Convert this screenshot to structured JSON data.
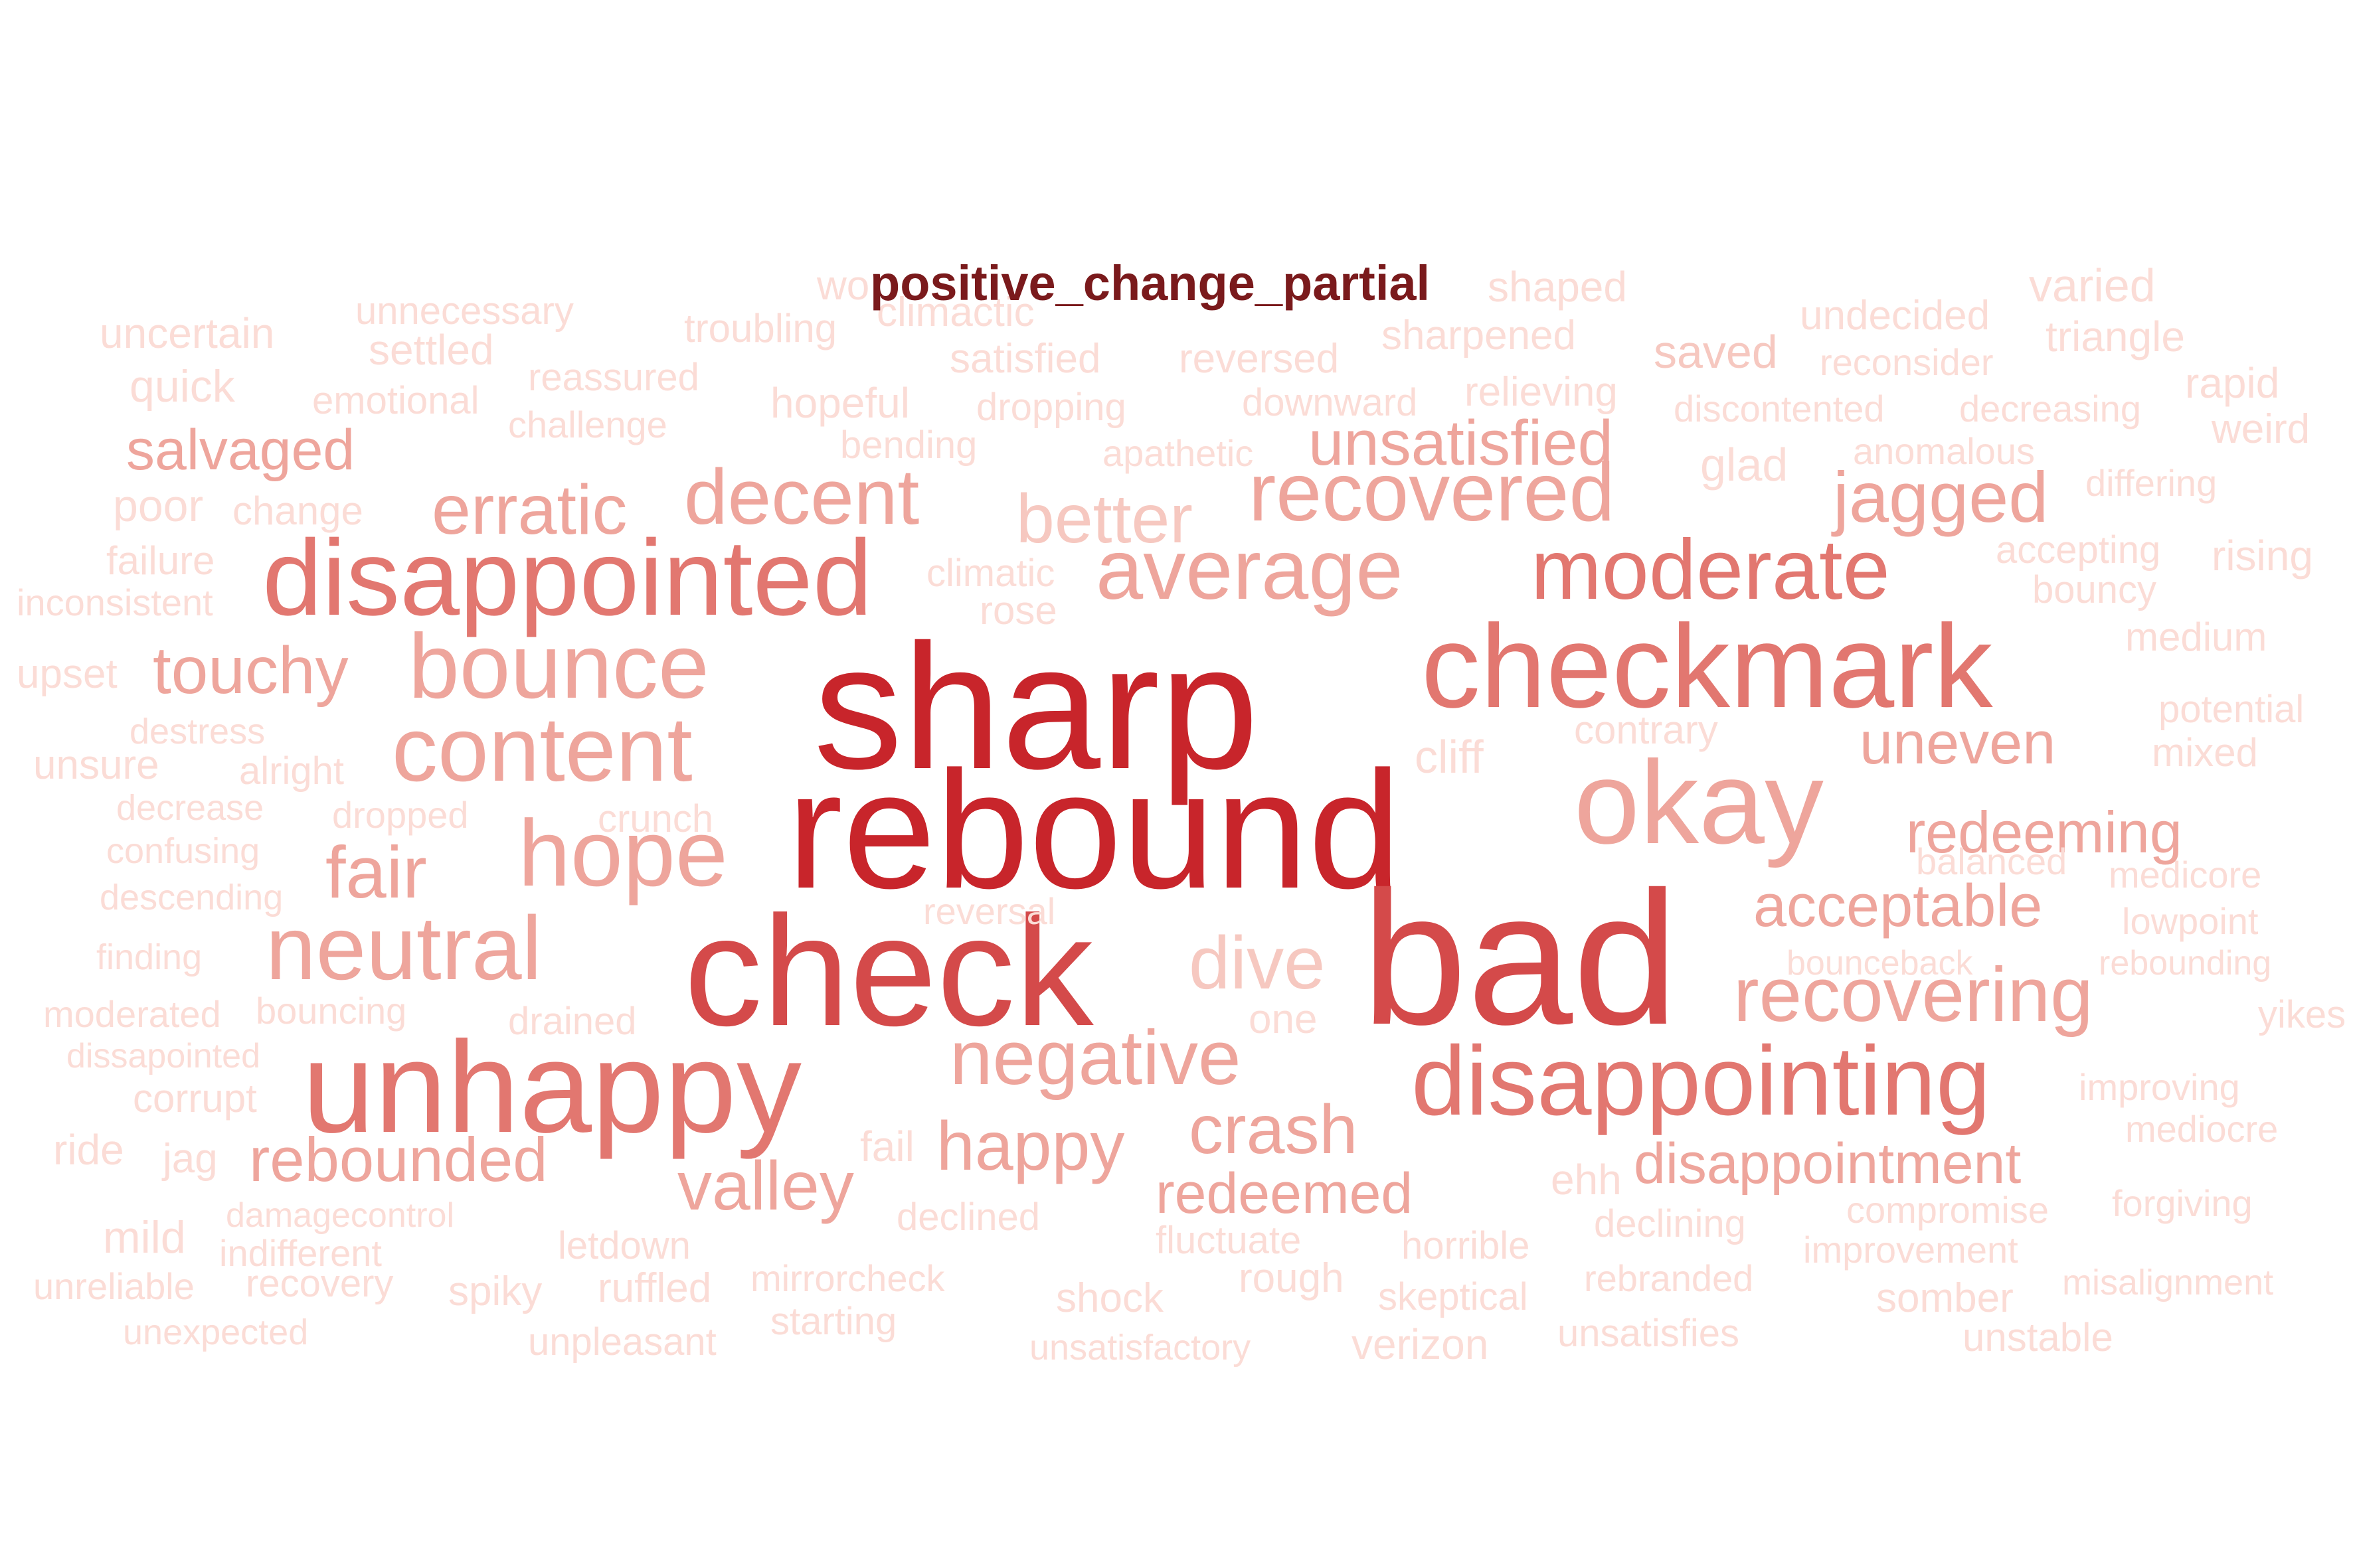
{
  "title": "positive_change_partial",
  "palette": {
    "t1": "#c8252b",
    "t2": "#d44a4a",
    "t3": "#e27770",
    "t4": "#eea59c",
    "t5": "#f6c8c0",
    "t6": "#fbdcd6"
  },
  "words": [
    {
      "text": "sharp",
      "tier": "t1"
    },
    {
      "text": "rebound",
      "tier": "t1"
    },
    {
      "text": "bad",
      "tier": "t2"
    },
    {
      "text": "check",
      "tier": "t2"
    },
    {
      "text": "checkmark",
      "tier": "t3"
    },
    {
      "text": "unhappy",
      "tier": "t3"
    },
    {
      "text": "disappointed",
      "tier": "t3"
    },
    {
      "text": "okay",
      "tier": "t4"
    },
    {
      "text": "disappointing",
      "tier": "t3"
    },
    {
      "text": "moderate",
      "tier": "t3"
    },
    {
      "text": "average",
      "tier": "t4"
    },
    {
      "text": "recovered",
      "tier": "t4"
    },
    {
      "text": "bounce",
      "tier": "t4"
    },
    {
      "text": "content",
      "tier": "t4"
    },
    {
      "text": "hope",
      "tier": "t4"
    },
    {
      "text": "neutral",
      "tier": "t4"
    },
    {
      "text": "negative",
      "tier": "t4"
    },
    {
      "text": "recovering",
      "tier": "t4"
    },
    {
      "text": "decent",
      "tier": "t4"
    },
    {
      "text": "erratic",
      "tier": "t4"
    },
    {
      "text": "jagged",
      "tier": "t4"
    },
    {
      "text": "better",
      "tier": "t5"
    },
    {
      "text": "unsatisfied",
      "tier": "t4"
    },
    {
      "text": "touchy",
      "tier": "t4"
    },
    {
      "text": "fair",
      "tier": "t4"
    },
    {
      "text": "dive",
      "tier": "t5"
    },
    {
      "text": "crash",
      "tier": "t4"
    },
    {
      "text": "happy",
      "tier": "t4"
    },
    {
      "text": "valley",
      "tier": "t4"
    },
    {
      "text": "rebounded",
      "tier": "t4"
    },
    {
      "text": "redeemed",
      "tier": "t4"
    },
    {
      "text": "disappointment",
      "tier": "t4"
    },
    {
      "text": "uneven",
      "tier": "t4"
    },
    {
      "text": "redeeming",
      "tier": "t4"
    },
    {
      "text": "acceptable",
      "tier": "t4"
    },
    {
      "text": "salvaged",
      "tier": "t4"
    },
    {
      "text": "uncertain",
      "tier": "t6"
    },
    {
      "text": "unnecessary",
      "tier": "t6"
    },
    {
      "text": "troubling",
      "tier": "t6"
    },
    {
      "text": "wo",
      "tier": "t6"
    },
    {
      "text": "climactic",
      "tier": "t6"
    },
    {
      "text": "shaped",
      "tier": "t6"
    },
    {
      "text": "varied",
      "tier": "t6"
    },
    {
      "text": "undecided",
      "tier": "t6"
    },
    {
      "text": "settled",
      "tier": "t6"
    },
    {
      "text": "satisfied",
      "tier": "t6"
    },
    {
      "text": "reversed",
      "tier": "t6"
    },
    {
      "text": "sharpened",
      "tier": "t6"
    },
    {
      "text": "saved",
      "tier": "t5"
    },
    {
      "text": "reconsider",
      "tier": "t6"
    },
    {
      "text": "triangle",
      "tier": "t6"
    },
    {
      "text": "quick",
      "tier": "t6"
    },
    {
      "text": "reassured",
      "tier": "t6"
    },
    {
      "text": "emotional",
      "tier": "t6"
    },
    {
      "text": "hopeful",
      "tier": "t6"
    },
    {
      "text": "dropping",
      "tier": "t6"
    },
    {
      "text": "downward",
      "tier": "t6"
    },
    {
      "text": "relieving",
      "tier": "t6"
    },
    {
      "text": "discontented",
      "tier": "t6"
    },
    {
      "text": "decreasing",
      "tier": "t6"
    },
    {
      "text": "rapid",
      "tier": "t6"
    },
    {
      "text": "challenge",
      "tier": "t6"
    },
    {
      "text": "bending",
      "tier": "t6"
    },
    {
      "text": "apathetic",
      "tier": "t6"
    },
    {
      "text": "glad",
      "tier": "t6"
    },
    {
      "text": "anomalous",
      "tier": "t6"
    },
    {
      "text": "weird",
      "tier": "t6"
    },
    {
      "text": "poor",
      "tier": "t6"
    },
    {
      "text": "change",
      "tier": "t6"
    },
    {
      "text": "differing",
      "tier": "t6"
    },
    {
      "text": "failure",
      "tier": "t6"
    },
    {
      "text": "climatic",
      "tier": "t6"
    },
    {
      "text": "accepting",
      "tier": "t6"
    },
    {
      "text": "rising",
      "tier": "t6"
    },
    {
      "text": "inconsistent",
      "tier": "t6"
    },
    {
      "text": "rose",
      "tier": "t6"
    },
    {
      "text": "bouncy",
      "tier": "t6"
    },
    {
      "text": "medium",
      "tier": "t6"
    },
    {
      "text": "upset",
      "tier": "t6"
    },
    {
      "text": "potential",
      "tier": "t6"
    },
    {
      "text": "destress",
      "tier": "t6"
    },
    {
      "text": "contrary",
      "tier": "t6"
    },
    {
      "text": "cliff",
      "tier": "t6"
    },
    {
      "text": "mixed",
      "tier": "t6"
    },
    {
      "text": "unsure",
      "tier": "t6"
    },
    {
      "text": "alright",
      "tier": "t6"
    },
    {
      "text": "decrease",
      "tier": "t6"
    },
    {
      "text": "dropped",
      "tier": "t6"
    },
    {
      "text": "crunch",
      "tier": "t6"
    },
    {
      "text": "confusing",
      "tier": "t6"
    },
    {
      "text": "balanced",
      "tier": "t6"
    },
    {
      "text": "medicore",
      "tier": "t6"
    },
    {
      "text": "descending",
      "tier": "t6"
    },
    {
      "text": "reversal",
      "tier": "t6"
    },
    {
      "text": "lowpoint",
      "tier": "t6"
    },
    {
      "text": "finding",
      "tier": "t6"
    },
    {
      "text": "bounceback",
      "tier": "t6"
    },
    {
      "text": "rebounding",
      "tier": "t6"
    },
    {
      "text": "moderated",
      "tier": "t6"
    },
    {
      "text": "bouncing",
      "tier": "t6"
    },
    {
      "text": "drained",
      "tier": "t6"
    },
    {
      "text": "one",
      "tier": "t6"
    },
    {
      "text": "yikes",
      "tier": "t6"
    },
    {
      "text": "dissapointed",
      "tier": "t6"
    },
    {
      "text": "corrupt",
      "tier": "t6"
    },
    {
      "text": "improving",
      "tier": "t6"
    },
    {
      "text": "mediocre",
      "tier": "t6"
    },
    {
      "text": "ride",
      "tier": "t6"
    },
    {
      "text": "jag",
      "tier": "t6"
    },
    {
      "text": "fail",
      "tier": "t6"
    },
    {
      "text": "ehh",
      "tier": "t6"
    },
    {
      "text": "compromise",
      "tier": "t6"
    },
    {
      "text": "forgiving",
      "tier": "t6"
    },
    {
      "text": "damagecontrol",
      "tier": "t6"
    },
    {
      "text": "declined",
      "tier": "t6"
    },
    {
      "text": "mild",
      "tier": "t6"
    },
    {
      "text": "indifferent",
      "tier": "t6"
    },
    {
      "text": "letdown",
      "tier": "t6"
    },
    {
      "text": "fluctuate",
      "tier": "t6"
    },
    {
      "text": "horrible",
      "tier": "t6"
    },
    {
      "text": "declining",
      "tier": "t6"
    },
    {
      "text": "improvement",
      "tier": "t6"
    },
    {
      "text": "mirrorcheck",
      "tier": "t6"
    },
    {
      "text": "unreliable",
      "tier": "t6"
    },
    {
      "text": "recovery",
      "tier": "t6"
    },
    {
      "text": "spiky",
      "tier": "t6"
    },
    {
      "text": "ruffled",
      "tier": "t6"
    },
    {
      "text": "shock",
      "tier": "t6"
    },
    {
      "text": "rough",
      "tier": "t6"
    },
    {
      "text": "skeptical",
      "tier": "t6"
    },
    {
      "text": "rebranded",
      "tier": "t6"
    },
    {
      "text": "somber",
      "tier": "t6"
    },
    {
      "text": "misalignment",
      "tier": "t6"
    },
    {
      "text": "starting",
      "tier": "t6"
    },
    {
      "text": "unexpected",
      "tier": "t6"
    },
    {
      "text": "unsatisfies",
      "tier": "t6"
    },
    {
      "text": "unstable",
      "tier": "t6"
    },
    {
      "text": "unpleasant",
      "tier": "t6"
    },
    {
      "text": "unsatisfactory",
      "tier": "t6"
    },
    {
      "text": "verizon",
      "tier": "t6"
    }
  ]
}
